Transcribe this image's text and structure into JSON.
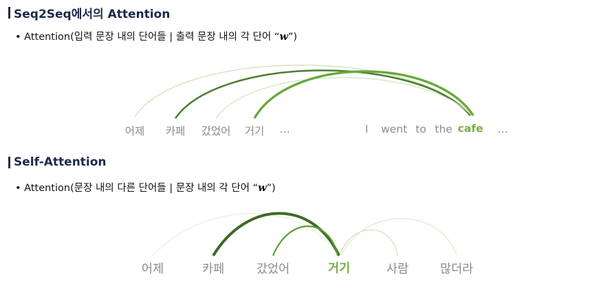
{
  "section1": {
    "title": "Seq2Seq에서의 Attention",
    "bullet_prefix": "• Attention(입력 문장 내의 단어들 | 출력 문장 내의 각 단어 “",
    "bullet_var": "w",
    "bullet_suffix": "”)",
    "source_tokens": [
      "어제",
      "카페",
      "갔었어",
      "거기",
      "…"
    ],
    "target_tokens": [
      "I",
      "went",
      "to",
      "the",
      "cafe",
      "…"
    ],
    "query_token": "cafe"
  },
  "section2": {
    "title": "Self-Attention",
    "bullet_prefix": "• Attention(문장 내의 다른 단어들 | 문장 내의 각 단어 “",
    "bullet_var": "w",
    "bullet_suffix": "”)",
    "tokens": [
      "어제",
      "카페",
      "갔었어",
      "거기",
      "사람",
      "많더라"
    ],
    "query_token": "거기"
  },
  "colors": {
    "highlight": "#76b043",
    "token_gray": "#8a8a8a",
    "title_navy": "#1c2a4a",
    "arc_dark": "#3f6e27",
    "arc_mid": "#5e9a35",
    "arc_light": "#b7d99a",
    "arc_faint": "#e3eed8"
  }
}
